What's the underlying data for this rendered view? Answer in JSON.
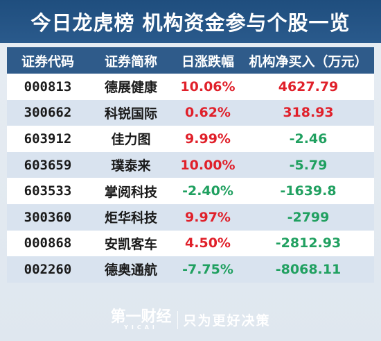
{
  "title": "今日龙虎榜  机构资金参与个股一览",
  "table": {
    "headers": [
      "证券代码",
      "证券简称",
      "日涨跌幅",
      "机构净买入（万元）"
    ],
    "rows": [
      {
        "code": "000813",
        "name": "德展健康",
        "change": "10.06%",
        "net_buy": "4627.79"
      },
      {
        "code": "300662",
        "name": "科锐国际",
        "change": "0.62%",
        "net_buy": "318.93"
      },
      {
        "code": "603912",
        "name": "佳力图",
        "change": "9.99%",
        "net_buy": "-2.46"
      },
      {
        "code": "603659",
        "name": "璞泰来",
        "change": "10.00%",
        "net_buy": "-5.79"
      },
      {
        "code": "603533",
        "name": "掌阅科技",
        "change": "-2.40%",
        "net_buy": "-1639.8"
      },
      {
        "code": "300360",
        "name": "炬华科技",
        "change": "9.97%",
        "net_buy": "-2799"
      },
      {
        "code": "000868",
        "name": "安凯客车",
        "change": "4.50%",
        "net_buy": "-2812.93"
      },
      {
        "code": "002260",
        "name": "德奥通航",
        "change": "-7.75%",
        "net_buy": "-8068.11"
      }
    ]
  },
  "footer": {
    "logo_text": "第一财经",
    "logo_sub": "YICAI",
    "slogan": "只为更好决策"
  },
  "colors": {
    "positive": "#e0202a",
    "negative": "#20a060",
    "header_bg": "#2f5b8a"
  }
}
